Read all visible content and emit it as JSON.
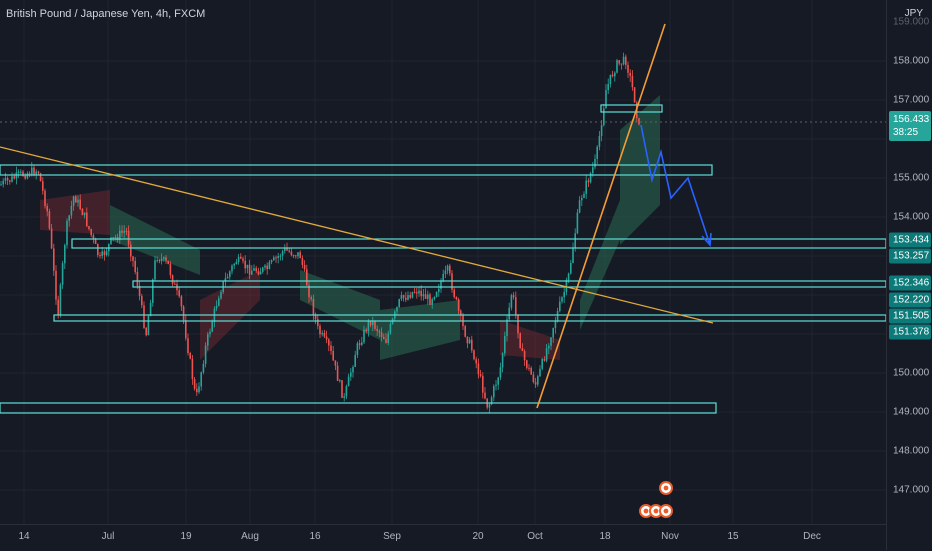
{
  "symbol": {
    "title": "British Pound / Japanese Yen, 4h, FXCM",
    "currency": "JPY"
  },
  "last_price": {
    "value": "156.433",
    "countdown": "38:25"
  },
  "price_axis": {
    "top_label": "159.000",
    "ticks": [
      "158.000",
      "157.000",
      "155.000",
      "154.000",
      "150.000",
      "149.000",
      "148.000",
      "147.000"
    ]
  },
  "level_badges": [
    "153.434",
    "153.257",
    "152.346",
    "152.220",
    "151.505",
    "151.378"
  ],
  "time_axis": {
    "labels": [
      "14",
      "Jul",
      "19",
      "Aug",
      "16",
      "Sep",
      "20",
      "Oct",
      "18",
      "Nov",
      "15",
      "Dec"
    ]
  },
  "colors": {
    "background": "#161a25",
    "up_candle": "#26a69a",
    "down_candle": "#ef5350",
    "zone_border": "#5ce0d8",
    "trendline": "#e3a93a",
    "projection": "#2962ff",
    "cloud_bull": "#2e7d5b",
    "cloud_bear": "#7b2b34"
  },
  "icons": [
    "events-marker-icon"
  ]
}
